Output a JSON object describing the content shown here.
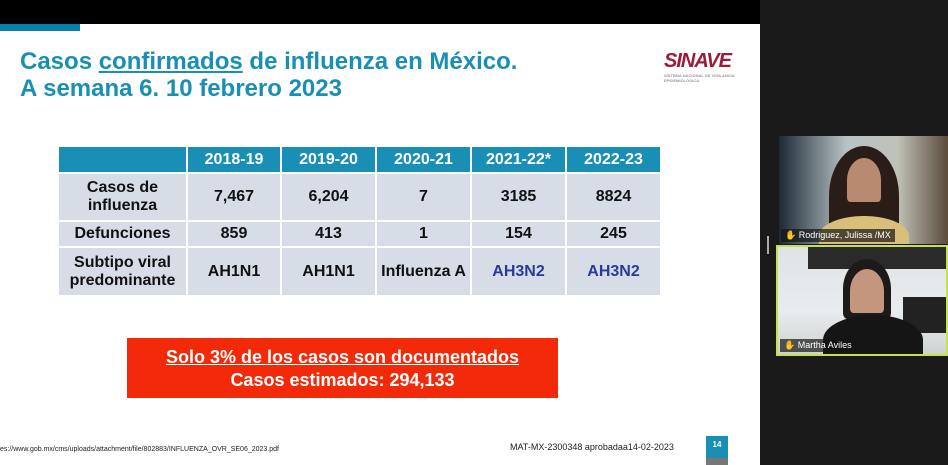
{
  "slide": {
    "title_pre": "Casos ",
    "title_underlined": "confirmados",
    "title_post": " de influenza en México.",
    "title_line2": "A semana 6. 10 febrero 2023",
    "logo_text": "SINAVE",
    "table": {
      "headers": [
        "",
        "2018-19",
        "2019-20",
        "2020-21",
        "2021-22*",
        "2022-23"
      ],
      "rows": [
        {
          "label": "Casos de influenza",
          "values": [
            "7,467",
            "6,204",
            "7",
            "3185",
            "8824"
          ]
        },
        {
          "label": "Defunciones",
          "values": [
            "859",
            "413",
            "1",
            "154",
            "245"
          ]
        },
        {
          "label": "Subtipo viral predominante",
          "values": [
            "AH1N1",
            "AH1N1",
            "Influenza A",
            "AH3N2",
            "AH3N2"
          ]
        }
      ]
    },
    "callout_line1": "Solo 3% de los casos son documentados",
    "callout_line2": "Casos estimados: 294,133",
    "source": "es://www.gob.mx/cms/uploads/attachment/file/802883/INFLUENZA_OVR_SE06_2023.pdf",
    "approval": "MAT-MX-2300348 aprobadaa14-02-2023",
    "page_number": "14"
  },
  "participants": [
    {
      "name": "Rodriguez, Julissa /MX"
    },
    {
      "name": "Martha Aviles"
    }
  ],
  "colors": {
    "accent": "#1a8fb5",
    "callout": "#f22a0a",
    "active_speaker": "#c6e24a"
  }
}
